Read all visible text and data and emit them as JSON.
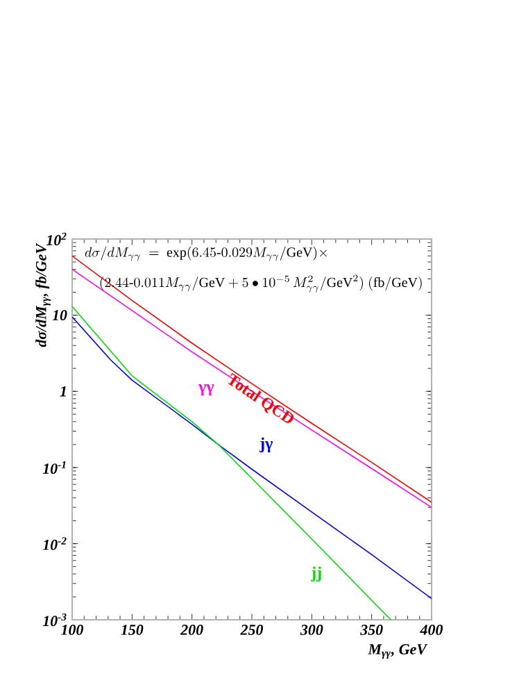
{
  "chart_data": {
    "type": "line",
    "xlabel": "M$_{γγ}$,  GeV",
    "ylabel": "dσ/dM$_{γγ}$,  fb/GeV",
    "annotations": [
      "d\\sigma/dM_{\\gamma\\gamma}\\ =\\ \\exp(6.45\\text{-}0.029M_{\\gamma\\gamma}/\\mathrm{GeV})\\times",
      "(2.44\\text{-}0.011M_{\\gamma\\gamma}/\\mathrm{GeV}+5\\bullet10^{-5}\\,M_{\\gamma\\gamma}^{2}/\\mathrm{GeV}^{2})\\ (\\mathrm{fb/GeV})"
    ],
    "x": [
      100,
      150,
      200,
      250,
      300,
      350,
      400
    ],
    "series": [
      {
        "name": "Total QCD",
        "color": "#ff0000",
        "values": [
          60,
          15.6,
          4.3,
          1.26,
          0.38,
          0.117,
          0.035
        ]
      },
      {
        "name": "γγ",
        "color": "#ff00ff",
        "values": [
          40,
          11.5,
          3.3,
          1.0,
          0.31,
          0.097,
          0.03
        ]
      },
      {
        "name": "jγ",
        "color": "#0000ff",
        "x": [
          100,
          132,
          150,
          200,
          222,
          250,
          300,
          350,
          400
        ],
        "values": [
          9.5,
          2.6,
          1.4,
          0.37,
          0.2,
          0.095,
          0.026,
          0.0072,
          0.0019
        ]
      },
      {
        "name": "jj",
        "color": "#00e000",
        "x": [
          100,
          150,
          200,
          222,
          250,
          300,
          366
        ],
        "values": [
          13,
          1.6,
          0.4,
          0.2,
          0.072,
          0.0115,
          0.001
        ]
      }
    ],
    "xlim": [
      100,
      400
    ],
    "ylim": [
      0.001,
      100
    ],
    "xticks": [
      100,
      150,
      200,
      250,
      300,
      350,
      400
    ],
    "yticks": [
      {
        "value": 0.001,
        "label": "10$^{-3}$"
      },
      {
        "value": 0.01,
        "label": "10$^{-2}$"
      },
      {
        "value": 0.1,
        "label": "10$^{-1}$"
      },
      1,
      10,
      {
        "value": 100,
        "label": "10$^{2}$"
      }
    ],
    "log": "y",
    "grid": false,
    "legend": false,
    "marker": "none",
    "line_style": "solid"
  }
}
